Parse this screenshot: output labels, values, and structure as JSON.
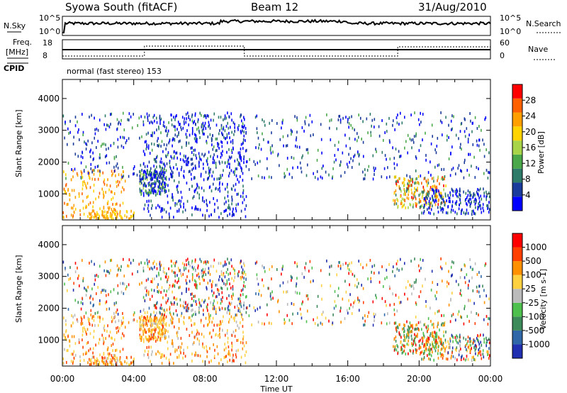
{
  "header": {
    "station": "Syowa South (fitACF)",
    "beam": "Beam 12",
    "date": "31/Aug/2010"
  },
  "noise_panel": {
    "left_label": "N.Sky",
    "left_ticks": [
      "10^5",
      "10^0"
    ],
    "right_label": "N.Search",
    "right_ticks": [
      "10^5",
      "10^0"
    ]
  },
  "freq_panel": {
    "left_label_top": "Freq.",
    "left_label_bottom": "[MHz]",
    "left_ticks": [
      "18",
      "8"
    ],
    "right_label": "Nave",
    "right_ticks": [
      "60",
      "0"
    ],
    "cpid_label": "CPID",
    "mode_text": "normal (fast stereo) 153"
  },
  "chart_data": [
    {
      "type": "heatmap",
      "name": "power",
      "xlabel": "Time UT",
      "ylabel": "Slant Range [km]",
      "xlim": [
        0,
        24
      ],
      "ylim": [
        180,
        4600
      ],
      "xticks": [
        "00:00",
        "04:00",
        "08:00",
        "12:00",
        "16:00",
        "20:00",
        "00:00"
      ],
      "yticks": [
        1000,
        2000,
        3000,
        4000
      ],
      "colorbar": {
        "label": "Power [dB]",
        "range": [
          0,
          32
        ],
        "ticks": [
          4,
          8,
          12,
          16,
          20,
          24,
          28
        ],
        "colors": [
          "#0000ff",
          "#1a3b9c",
          "#2e7b6a",
          "#4aa84a",
          "#a8d44a",
          "#ffd400",
          "#ffa000",
          "#ff6000",
          "#ff0000"
        ]
      },
      "scatter_regions": [
        {
          "t": [
            0,
            3.5
          ],
          "r": [
            300,
            1800
          ],
          "level": "weak-orange"
        },
        {
          "t": [
            4.3,
            5.8
          ],
          "r": [
            1000,
            1800
          ],
          "level": "blue-green"
        },
        {
          "t": [
            4.5,
            10.3
          ],
          "r": [
            300,
            3600
          ],
          "level": "blue"
        },
        {
          "t": [
            18.5,
            21.5
          ],
          "r": [
            600,
            1600
          ],
          "level": "red-yellow"
        },
        {
          "t": [
            20,
            24
          ],
          "r": [
            400,
            1200
          ],
          "level": "blue"
        }
      ]
    },
    {
      "type": "heatmap",
      "name": "velocity",
      "xlabel": "Time UT",
      "ylabel": "Slant Range [km]",
      "xlim": [
        0,
        24
      ],
      "ylim": [
        180,
        4600
      ],
      "xticks": [
        "00:00",
        "04:00",
        "08:00",
        "12:00",
        "16:00",
        "20:00",
        "00:00"
      ],
      "yticks": [
        1000,
        2000,
        3000,
        4000
      ],
      "colorbar": {
        "label": "Velocity [m s-1]",
        "ticks": [
          "1000",
          "500",
          "100",
          "25",
          "-25",
          "-100",
          "-500",
          "-1000"
        ],
        "colors": [
          "#2030b0",
          "#2f67a8",
          "#3c8a5a",
          "#4ec04e",
          "#bbbbbb",
          "#ffd040",
          "#ff9000",
          "#ff4000",
          "#ff0000"
        ]
      }
    }
  ],
  "colors": {
    "axis": "#000000",
    "ground_scatter": "#aaaaaa"
  }
}
